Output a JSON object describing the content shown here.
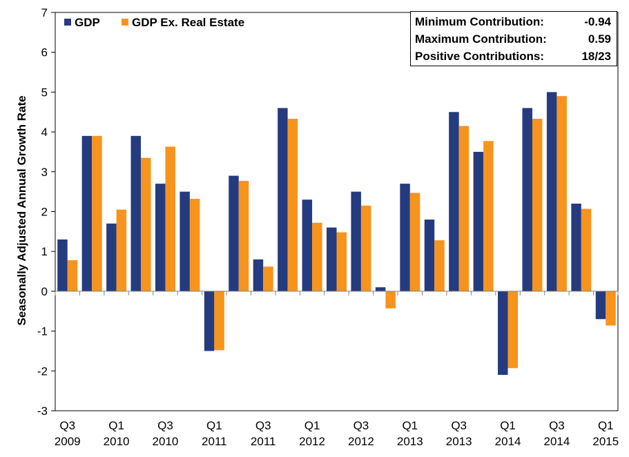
{
  "chart_data": {
    "type": "bar",
    "ylabel": "Seasonally Adjusted Annual Growth Rate",
    "ylim": [
      -3,
      7
    ],
    "yticks": [
      -3,
      -2,
      -1,
      0,
      1,
      2,
      3,
      4,
      5,
      6,
      7
    ],
    "categories": [
      "Q3 2009",
      "Q4 2009",
      "Q1 2010",
      "Q2 2010",
      "Q3 2010",
      "Q4 2010",
      "Q1 2011",
      "Q2 2011",
      "Q3 2011",
      "Q4 2011",
      "Q1 2012",
      "Q2 2012",
      "Q3 2012",
      "Q4 2012",
      "Q1 2013",
      "Q2 2013",
      "Q3 2013",
      "Q4 2013",
      "Q1 2014",
      "Q2 2014",
      "Q3 2014",
      "Q4 2014",
      "Q1 2015"
    ],
    "xtick_labels": [
      {
        "index": 0,
        "line1": "Q3",
        "line2": "2009"
      },
      {
        "index": 2,
        "line1": "Q1",
        "line2": "2010"
      },
      {
        "index": 4,
        "line1": "Q3",
        "line2": "2010"
      },
      {
        "index": 6,
        "line1": "Q1",
        "line2": "2011"
      },
      {
        "index": 8,
        "line1": "Q3",
        "line2": "2011"
      },
      {
        "index": 10,
        "line1": "Q1",
        "line2": "2012"
      },
      {
        "index": 12,
        "line1": "Q3",
        "line2": "2012"
      },
      {
        "index": 14,
        "line1": "Q1",
        "line2": "2013"
      },
      {
        "index": 16,
        "line1": "Q3",
        "line2": "2013"
      },
      {
        "index": 18,
        "line1": "Q1",
        "line2": "2014"
      },
      {
        "index": 20,
        "line1": "Q3",
        "line2": "2014"
      },
      {
        "index": 22,
        "line1": "Q1",
        "line2": "2015"
      }
    ],
    "series": [
      {
        "name": "GDP",
        "color": "#253b80",
        "values": [
          1.3,
          3.9,
          1.7,
          3.9,
          2.7,
          2.5,
          -1.5,
          2.9,
          0.8,
          4.6,
          2.3,
          1.6,
          2.5,
          0.1,
          2.7,
          1.8,
          4.5,
          3.5,
          -2.1,
          4.6,
          5.0,
          2.2,
          -0.7
        ]
      },
      {
        "name": "GDP Ex. Real Estate",
        "color": "#f7941d",
        "values": [
          0.78,
          3.9,
          2.05,
          3.35,
          3.63,
          2.32,
          -1.48,
          2.77,
          0.62,
          4.33,
          1.72,
          1.48,
          2.15,
          -0.43,
          2.47,
          1.28,
          4.15,
          3.77,
          -1.93,
          4.33,
          4.9,
          2.07,
          -0.86
        ]
      }
    ],
    "legend_position": "top-left",
    "grid": false
  },
  "stats": {
    "rows": [
      {
        "label": "Minimum Contribution:",
        "value": "-0.94"
      },
      {
        "label": "Maximum Contribution:",
        "value": "0.59"
      },
      {
        "label": "Positive Contributions:",
        "value": "18/23"
      }
    ]
  }
}
